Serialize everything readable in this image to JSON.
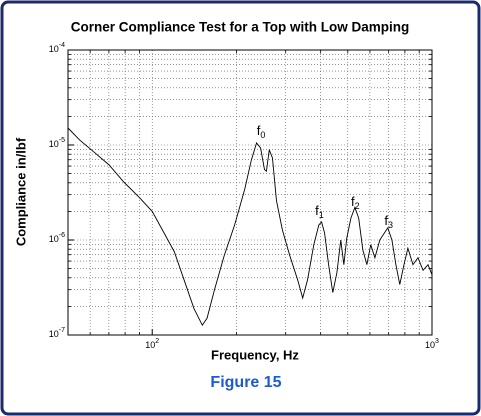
{
  "chart_data": {
    "type": "line",
    "title": "Corner Compliance Test for a Top with Low Damping",
    "x_label": "Frequency, Hz",
    "y_label": "Compliance in/lbf",
    "caption": "Figure 15",
    "x_scale": "log",
    "y_scale": "log",
    "grid": true,
    "minor_grid": true,
    "color": "#000000",
    "xlim": [
      50,
      1000
    ],
    "ylim": [
      1e-07,
      0.0001
    ],
    "xticks": [
      {
        "value": 100,
        "label": "10",
        "exponent": "2"
      },
      {
        "value": 1000,
        "label": "10",
        "exponent": "3"
      }
    ],
    "yticks": [
      {
        "value": 1e-07,
        "label": "10",
        "exponent": "-7"
      },
      {
        "value": 1e-06,
        "label": "10",
        "exponent": "-6"
      },
      {
        "value": 1e-05,
        "label": "10",
        "exponent": "-5"
      },
      {
        "value": 0.0001,
        "label": "10",
        "exponent": "-4"
      }
    ],
    "x": [
      50,
      55,
      62,
      70,
      79,
      90,
      100,
      110,
      120,
      130,
      141,
      151,
      157,
      167,
      181,
      197,
      214,
      226,
      236,
      244,
      252,
      256,
      262,
      269,
      278,
      292,
      310,
      331,
      345,
      359,
      378,
      394,
      403,
      413,
      427,
      442,
      457,
      472,
      484,
      496,
      513,
      530,
      547,
      566,
      585,
      604,
      625,
      651,
      679,
      695,
      719,
      743,
      767,
      794,
      820,
      855,
      891,
      929,
      968,
      1000
    ],
    "values": [
      1.51e-05,
      1.13e-05,
      8.4e-06,
      6.2e-06,
      4.1e-06,
      2.8e-06,
      2e-06,
      1.2e-06,
      7.5e-07,
      3.8e-07,
      1.9e-07,
      1.27e-07,
      1.5e-07,
      3e-07,
      6.9e-07,
      1.44e-06,
      3.4e-06,
      6.9e-06,
      1.05e-05,
      9.3e-06,
      5.5e-06,
      5.3e-06,
      8.9e-06,
      7.3e-06,
      2.6e-06,
      1.27e-06,
      6.9e-07,
      3.8e-07,
      2.45e-07,
      3.8e-07,
      8.9e-07,
      1.44e-06,
      1.55e-06,
      1.19e-06,
      5.5e-07,
      2.8e-07,
      4.5e-07,
      1e-06,
      5.5e-07,
      1.05e-06,
      1.7e-06,
      2.2e-06,
      1.7e-06,
      7.85e-07,
      5.5e-07,
      8.9e-07,
      6.5e-07,
      1e-06,
      1.21e-06,
      1.34e-06,
      1e-06,
      5.5e-07,
      3.4e-07,
      5.5e-07,
      8.2e-07,
      5.5e-07,
      6.5e-07,
      4.8e-07,
      5.5e-07,
      4.3e-07
    ],
    "annotations": [
      {
        "text": "f",
        "subscript": "0",
        "x": 245,
        "y": 1.37e-05
      },
      {
        "text": "f",
        "subscript": "1",
        "x": 396,
        "y": 1.97e-06
      },
      {
        "text": "f",
        "subscript": "2",
        "x": 532,
        "y": 2.45e-06
      },
      {
        "text": "f",
        "subscript": "3",
        "x": 700,
        "y": 1.55e-06
      }
    ]
  }
}
